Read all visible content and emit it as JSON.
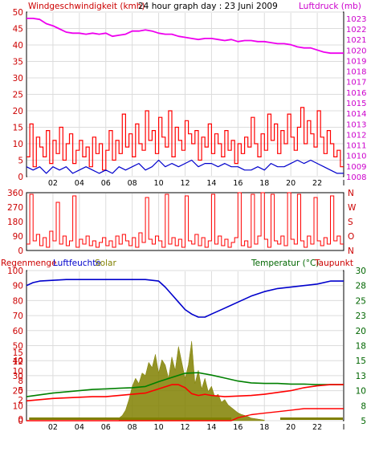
{
  "header": {
    "left_label": "Windgeschwindigkeit (kmh)",
    "center_label": "24 hour graph day : 23 Juni 2009",
    "right_label": "Luftdruck (mb)"
  },
  "panel3_labels": {
    "rain": "Regenmenge",
    "humidity": "Luftfeuchte",
    "solar": "Solar",
    "temperature": "Temperatur (°C)",
    "dewpoint": "Taupunkt"
  },
  "colors": {
    "wind_gust": "#ff0000",
    "wind_avg": "#0000cc",
    "pressure": "#ee00ee",
    "direction": "#ff0000",
    "humidity": "#0000cc",
    "solar": "#808000",
    "temperature": "#008000",
    "dewpoint": "#ff0000",
    "rain": "#ff0000",
    "left_axis_text": "#cc0000",
    "pressure_axis_text": "#cc00cc",
    "temp_axis_text": "#006600",
    "grid": "#dcdcdc",
    "frame": "#000000"
  },
  "x_axis": {
    "ticks": [
      "02",
      "04",
      "06",
      "08",
      "10",
      "12",
      "14",
      "16",
      "18",
      "20",
      "22",
      "I"
    ]
  },
  "chart_data": [
    {
      "type": "line",
      "name": "wind_and_pressure",
      "x_range_hours": [
        0,
        24
      ],
      "left_axis": {
        "label": "Windgeschwindigkeit (kmh)",
        "ticks": [
          "50",
          "45",
          "40",
          "35",
          "30",
          "25",
          "20",
          "15",
          "10",
          "5",
          "0"
        ],
        "ylim": [
          0,
          50
        ]
      },
      "right_axis": {
        "label": "Luftdruck (mb)",
        "ticks": [
          "1023",
          "1022",
          "1021",
          "1020",
          "1019",
          "1018",
          "1017",
          "1016",
          "1015",
          "1014",
          "1013",
          "1012",
          "1011",
          "1010",
          "1009",
          "1008"
        ],
        "ylim": [
          1008,
          1023.6
        ]
      },
      "series": [
        {
          "name": "Luftdruck (mb)",
          "x": [
            0.0,
            0.5,
            1.0,
            1.5,
            2.0,
            2.5,
            3.0,
            3.5,
            4.0,
            4.5,
            5.0,
            5.5,
            6.0,
            6.5,
            7.0,
            7.5,
            8.0,
            8.5,
            9.0,
            9.5,
            10.0,
            10.5,
            11.0,
            11.5,
            12.0,
            12.5,
            13.0,
            13.5,
            14.0,
            14.5,
            15.0,
            15.5,
            16.0,
            16.5,
            17.0,
            17.5,
            18.0,
            18.5,
            19.0,
            19.5,
            20.0,
            20.5,
            21.0,
            21.5,
            22.0,
            22.5,
            23.0,
            23.5,
            24.0
          ],
          "values": [
            1023.0,
            1023.0,
            1022.9,
            1022.5,
            1022.3,
            1022.0,
            1021.7,
            1021.6,
            1021.6,
            1021.5,
            1021.6,
            1021.5,
            1021.6,
            1021.3,
            1021.4,
            1021.5,
            1021.8,
            1021.8,
            1021.9,
            1021.8,
            1021.6,
            1021.5,
            1021.5,
            1021.3,
            1021.2,
            1021.1,
            1021.0,
            1021.1,
            1021.1,
            1021.0,
            1020.9,
            1021.0,
            1020.8,
            1020.9,
            1020.9,
            1020.8,
            1020.8,
            1020.7,
            1020.6,
            1020.6,
            1020.5,
            1020.3,
            1020.2,
            1020.2,
            1020.0,
            1019.8,
            1019.7,
            1019.7,
            1019.7
          ]
        },
        {
          "name": "Windgeschwindigkeit (kmh)",
          "x": [
            0.0,
            0.25,
            0.5,
            0.75,
            1.0,
            1.25,
            1.5,
            1.75,
            2.0,
            2.25,
            2.5,
            2.75,
            3.0,
            3.25,
            3.5,
            3.75,
            4.0,
            4.25,
            4.5,
            4.75,
            5.0,
            5.25,
            5.5,
            5.75,
            6.0,
            6.25,
            6.5,
            6.75,
            7.0,
            7.25,
            7.5,
            7.75,
            8.0,
            8.25,
            8.5,
            8.75,
            9.0,
            9.25,
            9.5,
            9.75,
            10.0,
            10.25,
            10.5,
            10.75,
            11.0,
            11.25,
            11.5,
            11.75,
            12.0,
            12.25,
            12.5,
            12.75,
            13.0,
            13.25,
            13.5,
            13.75,
            14.0,
            14.25,
            14.5,
            14.75,
            15.0,
            15.25,
            15.5,
            15.75,
            16.0,
            16.25,
            16.5,
            16.75,
            17.0,
            17.25,
            17.5,
            17.75,
            18.0,
            18.25,
            18.5,
            18.75,
            19.0,
            19.25,
            19.5,
            19.75,
            20.0,
            20.25,
            20.5,
            20.75,
            21.0,
            21.25,
            21.5,
            21.75,
            22.0,
            22.25,
            22.5,
            22.75,
            23.0,
            23.25,
            23.5,
            23.75
          ],
          "values": [
            6,
            16,
            3,
            12,
            9,
            6,
            14,
            4,
            11,
            7,
            15,
            5,
            10,
            13,
            4,
            8,
            11,
            6,
            9,
            3,
            12,
            7,
            10,
            2,
            8,
            14,
            5,
            11,
            7,
            19,
            9,
            13,
            6,
            16,
            10,
            8,
            20,
            11,
            14,
            7,
            18,
            12,
            9,
            20,
            6,
            15,
            11,
            8,
            17,
            13,
            10,
            14,
            5,
            12,
            9,
            16,
            7,
            13,
            10,
            6,
            14,
            8,
            11,
            4,
            10,
            7,
            12,
            9,
            18,
            10,
            6,
            13,
            8,
            19,
            11,
            16,
            7,
            14,
            10,
            19,
            12,
            8,
            15,
            21,
            10,
            17,
            13,
            9,
            20,
            12,
            7,
            14,
            10,
            6,
            8,
            3
          ]
        },
        {
          "name": "Windgeschwindigkeit Mittel",
          "x": [
            0.0,
            0.5,
            1.0,
            1.5,
            2.0,
            2.5,
            3.0,
            3.5,
            4.0,
            4.5,
            5.0,
            5.5,
            6.0,
            6.5,
            7.0,
            7.5,
            8.0,
            8.5,
            9.0,
            9.5,
            10.0,
            10.5,
            11.0,
            11.5,
            12.0,
            12.5,
            13.0,
            13.5,
            14.0,
            14.5,
            15.0,
            15.5,
            16.0,
            16.5,
            17.0,
            17.5,
            18.0,
            18.5,
            19.0,
            19.5,
            20.0,
            20.5,
            21.0,
            21.5,
            22.0,
            22.5,
            23.0,
            23.5,
            24.0
          ],
          "values": [
            3,
            2,
            3,
            1,
            3,
            2,
            3,
            1,
            2,
            3,
            2,
            1,
            2,
            1,
            3,
            2,
            3,
            4,
            2,
            3,
            5,
            3,
            4,
            3,
            4,
            5,
            3,
            4,
            4,
            3,
            4,
            3,
            3,
            2,
            2,
            3,
            2,
            4,
            3,
            3,
            4,
            5,
            4,
            5,
            4,
            3,
            2,
            1,
            1
          ]
        }
      ]
    },
    {
      "type": "line",
      "name": "wind_direction",
      "x_range_hours": [
        0,
        24
      ],
      "left_axis": {
        "ticks": [
          "360",
          "270",
          "180",
          "90",
          "0"
        ],
        "ylim": [
          0,
          360
        ]
      },
      "right_axis": {
        "ticks": [
          "N",
          "W",
          "S",
          "O",
          "N"
        ]
      },
      "series": [
        {
          "name": "Windrichtung",
          "x": [
            0.0,
            0.25,
            0.5,
            0.75,
            1.0,
            1.25,
            1.5,
            1.75,
            2.0,
            2.25,
            2.5,
            2.75,
            3.0,
            3.25,
            3.5,
            3.75,
            4.0,
            4.25,
            4.5,
            4.75,
            5.0,
            5.25,
            5.5,
            5.75,
            6.0,
            6.25,
            6.5,
            6.75,
            7.0,
            7.25,
            7.5,
            7.75,
            8.0,
            8.25,
            8.5,
            8.75,
            9.0,
            9.25,
            9.5,
            9.75,
            10.0,
            10.25,
            10.5,
            10.75,
            11.0,
            11.25,
            11.5,
            11.75,
            12.0,
            12.25,
            12.5,
            12.75,
            13.0,
            13.25,
            13.5,
            13.75,
            14.0,
            14.25,
            14.5,
            14.75,
            15.0,
            15.25,
            15.5,
            15.75,
            16.0,
            16.25,
            16.5,
            16.75,
            17.0,
            17.25,
            17.5,
            17.75,
            18.0,
            18.25,
            18.5,
            18.75,
            19.0,
            19.25,
            19.5,
            19.75,
            20.0,
            20.25,
            20.5,
            20.75,
            21.0,
            21.25,
            21.5,
            21.75,
            22.0,
            22.25,
            22.5,
            22.75,
            23.0,
            23.25,
            23.5,
            23.75
          ],
          "values": [
            40,
            350,
            60,
            100,
            30,
            80,
            20,
            120,
            60,
            300,
            40,
            90,
            30,
            60,
            340,
            20,
            70,
            40,
            90,
            30,
            60,
            20,
            50,
            80,
            30,
            60,
            20,
            90,
            40,
            100,
            60,
            30,
            80,
            20,
            110,
            50,
            330,
            70,
            40,
            90,
            60,
            20,
            350,
            40,
            80,
            30,
            70,
            20,
            340,
            60,
            40,
            100,
            30,
            80,
            20,
            60,
            350,
            40,
            90,
            30,
            70,
            20,
            50,
            80,
            360,
            30,
            60,
            20,
            350,
            40,
            90,
            360,
            70,
            20,
            350,
            60,
            40,
            90,
            30,
            360,
            70,
            40,
            350,
            60,
            20,
            90,
            40,
            330,
            60,
            30,
            80,
            40,
            340,
            60,
            90,
            40
          ]
        }
      ]
    },
    {
      "type": "line",
      "name": "humidity_temperature_rain_solar",
      "x_range_hours": [
        0,
        24
      ],
      "left_axis": {
        "label": "Regenmenge Luftfeuchte",
        "ticks": [
          "100",
          "90",
          "80",
          "70",
          "60",
          "50",
          "40",
          "30",
          "20",
          "10",
          "0"
        ],
        "ylim": [
          0,
          100
        ]
      },
      "left_axis_secondary": {
        "label": "Solar",
        "ticks": [
          "15",
          "12",
          "10",
          "8",
          "5",
          "2",
          "0"
        ],
        "ylim": [
          0,
          15
        ]
      },
      "right_axis": {
        "label": "Temperatur (°C) Taupunkt",
        "ticks": [
          "30",
          "28",
          "25",
          "23",
          "20",
          "18",
          "15",
          "13",
          "10",
          "8",
          "5"
        ],
        "ylim": [
          5,
          30
        ]
      },
      "series": [
        {
          "name": "Luftfeuchte",
          "x": [
            0,
            0.5,
            1,
            3,
            5,
            7,
            9,
            10,
            10.5,
            11,
            11.5,
            12,
            12.5,
            13,
            13.5,
            14,
            15,
            16,
            17,
            18,
            19,
            20,
            21,
            22,
            23,
            24
          ],
          "values": [
            90,
            92,
            93,
            94,
            94,
            94,
            94,
            93,
            89,
            84,
            79,
            74,
            71,
            69,
            69,
            71,
            75,
            79,
            83,
            86,
            88,
            89,
            90,
            91,
            93,
            93
          ]
        },
        {
          "name": "Temperatur (°C)",
          "x": [
            0,
            1,
            2,
            3,
            4,
            5,
            6,
            7,
            8,
            9,
            10,
            11,
            12,
            13,
            14,
            15,
            16,
            17,
            18,
            19,
            20,
            21,
            22,
            23,
            24
          ],
          "values": [
            9.0,
            9.3,
            9.6,
            9.8,
            10.0,
            10.2,
            10.3,
            10.4,
            10.5,
            10.7,
            11.5,
            12.2,
            12.9,
            13.0,
            12.6,
            12.1,
            11.6,
            11.3,
            11.2,
            11.2,
            11.1,
            11.1,
            11.0,
            11.0,
            11.0
          ]
        },
        {
          "name": "Taupunkt",
          "x": [
            0,
            1,
            2,
            3,
            4,
            5,
            6,
            7,
            8,
            9,
            10,
            11,
            11.5,
            12,
            12.5,
            13,
            13.5,
            14,
            15,
            16,
            17,
            18,
            19,
            20,
            21,
            22,
            23,
            24
          ],
          "values": [
            8.3,
            8.5,
            8.7,
            8.8,
            8.9,
            9.0,
            9.0,
            9.2,
            9.4,
            9.6,
            10.3,
            11.0,
            11.0,
            10.5,
            9.5,
            9.2,
            9.4,
            9.2,
            9.0,
            9.1,
            9.2,
            9.4,
            9.7,
            10.0,
            10.5,
            10.8,
            11.0,
            11.0
          ]
        },
        {
          "name": "Regenmenge",
          "x": [
            0,
            15.5,
            16,
            17,
            18,
            19,
            20,
            21,
            22,
            23,
            24
          ],
          "values": [
            0,
            0,
            2,
            4,
            5,
            6,
            7,
            8,
            8,
            8,
            8
          ]
        },
        {
          "name": "Solar",
          "x": [
            7.0,
            7.25,
            7.5,
            7.75,
            8.0,
            8.25,
            8.5,
            8.75,
            9.0,
            9.25,
            9.5,
            9.75,
            10.0,
            10.25,
            10.5,
            10.75,
            11.0,
            11.25,
            11.5,
            11.75,
            12.0,
            12.25,
            12.5,
            12.75,
            13.0,
            13.25,
            13.5,
            13.75,
            14.0,
            14.25,
            14.5,
            14.75,
            15.0,
            15.25,
            15.5,
            15.75,
            16.0,
            16.25,
            16.5,
            16.75,
            17.0,
            17.5,
            18.0
          ],
          "values": [
            0.5,
            1.0,
            2.0,
            4.0,
            6.5,
            8.0,
            7.0,
            9.0,
            8.5,
            11.0,
            10.0,
            12.5,
            9.0,
            11.5,
            10.5,
            8.0,
            12.0,
            9.5,
            14.0,
            11.0,
            8.0,
            10.5,
            15.0,
            7.0,
            9.5,
            6.0,
            8.0,
            5.5,
            6.5,
            4.5,
            5.0,
            3.5,
            4.0,
            3.0,
            2.5,
            2.0,
            1.5,
            1.2,
            1.0,
            0.8,
            0.5,
            0.3,
            0.1
          ]
        }
      ]
    }
  ]
}
